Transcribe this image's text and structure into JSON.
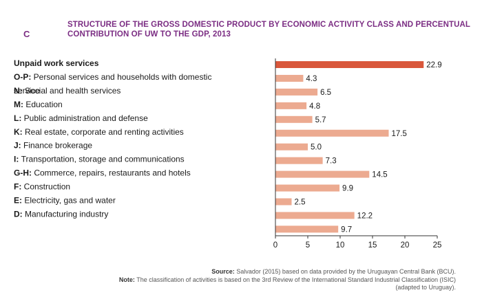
{
  "figure_letter": "C",
  "title_line1": "STRUCTURE OF THE GROSS DOMESTIC PRODUCT BY ECONOMIC ACTIVITY CLASS AND PERCENTUAL",
  "title_line2": "CONTRIBUTION OF UW TO THE GDP, 2013",
  "source_label": "Source:",
  "source_text": "Salvador (2015) based on data provided by the Uruguayan Central Bank (BCU).",
  "note_label": "Note:",
  "note_text_line1": "The classification of activities is based on the 3rd Review of the International Standard Industrial Classification (ISIC)",
  "note_text_line2": "(adapted to Uruguay).",
  "colors": {
    "highlight": "#d9573b",
    "bar": "#ecaa90",
    "title": "#7b2d83",
    "axis": "#333333"
  },
  "chart_data": {
    "type": "bar",
    "orientation": "horizontal",
    "xlim": [
      0,
      25
    ],
    "xticks": [
      0,
      5,
      10,
      15,
      20,
      25
    ],
    "grid": false,
    "categories": [
      {
        "code": "",
        "name": "Unpaid work services",
        "value": 22.9,
        "value_label": "22.9",
        "highlight": true
      },
      {
        "code": "O-P:",
        "name": "Personal services and households with domestic",
        "name2": "service",
        "value": 4.3,
        "value_label": "4.3"
      },
      {
        "code": "N:",
        "name": "Social and health services",
        "value": 6.5,
        "value_label": "6.5",
        "shift": true
      },
      {
        "code": "M:",
        "name": "Education",
        "value": 4.8,
        "value_label": "4.8"
      },
      {
        "code": "L:",
        "name": "Public administration and defense",
        "value": 5.7,
        "value_label": "5.7"
      },
      {
        "code": "K:",
        "name": "Real estate, corporate and renting activities",
        "value": 17.5,
        "value_label": "17.5"
      },
      {
        "code": "J:",
        "name": "Finance brokerage",
        "value": 5.0,
        "value_label": "5.0"
      },
      {
        "code": "I:",
        "name": "Transportation, storage and communications",
        "value": 7.3,
        "value_label": "7.3"
      },
      {
        "code": "G-H:",
        "name": "Commerce, repairs, restaurants and hotels",
        "value": 14.5,
        "value_label": "14.5"
      },
      {
        "code": "F:",
        "name": "Construction",
        "value": 9.9,
        "value_label": "9.9"
      },
      {
        "code": "E:",
        "name": "Electricity, gas and water",
        "value": 2.5,
        "value_label": "2.5"
      },
      {
        "code": "D:",
        "name": "Manufacturing industry",
        "value": 12.2,
        "value_label": "12.2"
      },
      {
        "code": "",
        "name": "",
        "value": 9.7,
        "value_label": "9.7"
      }
    ]
  }
}
